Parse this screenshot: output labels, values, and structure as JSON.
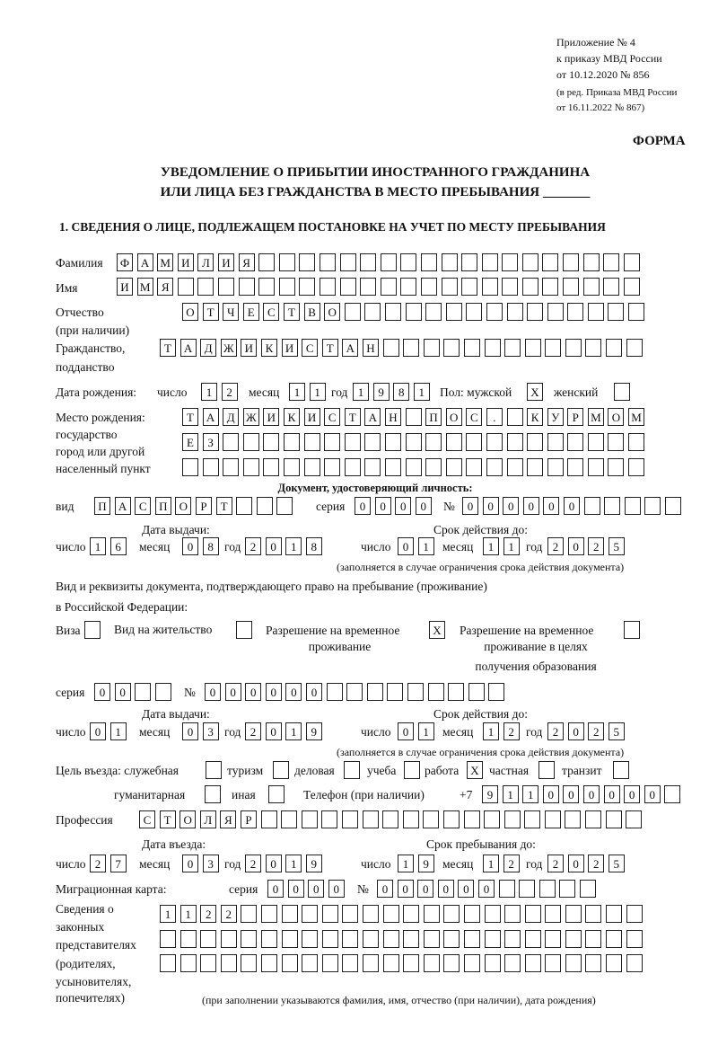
{
  "header": {
    "appendix": "Приложение № 4",
    "order": "к приказу МВД России",
    "order_date": "от 10.12.2020 № 856",
    "edition": "(в ред. Приказа МВД России",
    "edition_date": "от 16.11.2022 № 867)",
    "form_label": "ФОРМА",
    "title_line1": "УВЕДОМЛЕНИЕ О ПРИБЫТИИ ИНОСТРАННОГО ГРАЖДАНИНА",
    "title_line2": "ИЛИ ЛИЦА БЕЗ ГРАЖДАНСТВА В МЕСТО ПРЕБЫВАНИЯ _______",
    "section1": "1. СВЕДЕНИЯ О ЛИЦЕ, ПОДЛЕЖАЩЕМ ПОСТАНОВКЕ НА УЧЕТ ПО МЕСТУ ПРЕБЫВАНИЯ"
  },
  "labels": {
    "surname": "Фамилия",
    "name": "Имя",
    "patronymic": "Отчество",
    "patronymic_note": "(при наличии)",
    "citizenship": "Гражданство,",
    "citizenship2": "подданство",
    "birth_date": "Дата рождения:",
    "day": "число",
    "month": "месяц",
    "year": "год",
    "sex": "Пол: мужской",
    "female": "женский",
    "birth_place": "Место рождения:",
    "birth_place2": "государство",
    "birth_place3": "город или другой",
    "birth_place4": "населенный пункт",
    "id_doc": "Документ, удостоверяющий личность:",
    "kind": "вид",
    "series": "серия",
    "number": "№",
    "issue_date": "Дата выдачи:",
    "valid_until": "Срок действия до:",
    "validity_note": "(заполняется в случае ограничения срока действия документа)",
    "stay_doc": "Вид и реквизиты документа, подтверждающего право на пребывание (проживание)",
    "stay_doc2": "в Российской Федерации:",
    "visa": "Виза",
    "residence": "Вид на жительство",
    "temp_permit": "Разрешение на временное",
    "temp_permit2": "проживание",
    "edu_permit": "Разрешение на временное",
    "edu_permit2": "проживание в целях",
    "edu_permit3": "получения образования",
    "purpose": "Цель въезда: служебная",
    "tourism": "туризм",
    "business": "деловая",
    "study": "учеба",
    "work": "работа",
    "private": "частная",
    "transit": "транзит",
    "humanitarian": "гуманитарная",
    "other": "иная",
    "phone": "Телефон (при наличии)",
    "phone_prefix": "+7",
    "profession": "Профессия",
    "entry_date": "Дата въезда:",
    "stay_until": "Срок пребывания до:",
    "migration_card": "Миграционная карта:",
    "reps1": "Сведения о",
    "reps2": "законных",
    "reps3": "представителях",
    "reps4": "(родителях,",
    "reps5": "усыновителях,",
    "reps6": "попечителях)",
    "reps_note": "(при заполнении указываются фамилия, имя, отчество (при наличии), дата рождения)"
  },
  "person": {
    "surname": "ФАМИЛИЯ",
    "name": "ИМЯ",
    "patronymic": "ОТЧЕСТВО",
    "citizenship": "ТАДЖИКИСТАН",
    "birth_day": "12",
    "birth_month": "11",
    "birth_year": "1981",
    "male": "X",
    "female": "",
    "birth_place1": "ТАДЖИКИСТАН ПОС. КУРМОМБ",
    "birth_place2": "ЕЗ",
    "birth_place3": "",
    "doc_kind": "ПАСПОРТ",
    "doc_series": "0000",
    "doc_number": "000000",
    "doc_issue_day": "16",
    "doc_issue_month": "08",
    "doc_issue_year": "2018",
    "doc_valid_day": "01",
    "doc_valid_month": "11",
    "doc_valid_year": "2025",
    "visa": "",
    "residence": "",
    "temp_permit": "X",
    "edu_permit": "",
    "stay_series": "00",
    "stay_number": "000000",
    "stay_issue_day": "01",
    "stay_issue_month": "03",
    "stay_issue_year": "2019",
    "stay_valid_day": "01",
    "stay_valid_month": "12",
    "stay_valid_year": "2025",
    "p_official": "",
    "p_tourism": "",
    "p_business": "",
    "p_study": "",
    "p_work": "X",
    "p_private": "",
    "p_transit": "",
    "p_humanitarian": "",
    "p_other": "",
    "phone": "911000000",
    "profession": "СТОЛЯР",
    "entry_day": "27",
    "entry_month": "03",
    "entry_year": "2019",
    "stay_day": "19",
    "stay_month": "12",
    "stay_year": "2025",
    "mc_series": "0000",
    "mc_number": "000000",
    "reps1": "1122",
    "reps2": "",
    "reps3": ""
  }
}
